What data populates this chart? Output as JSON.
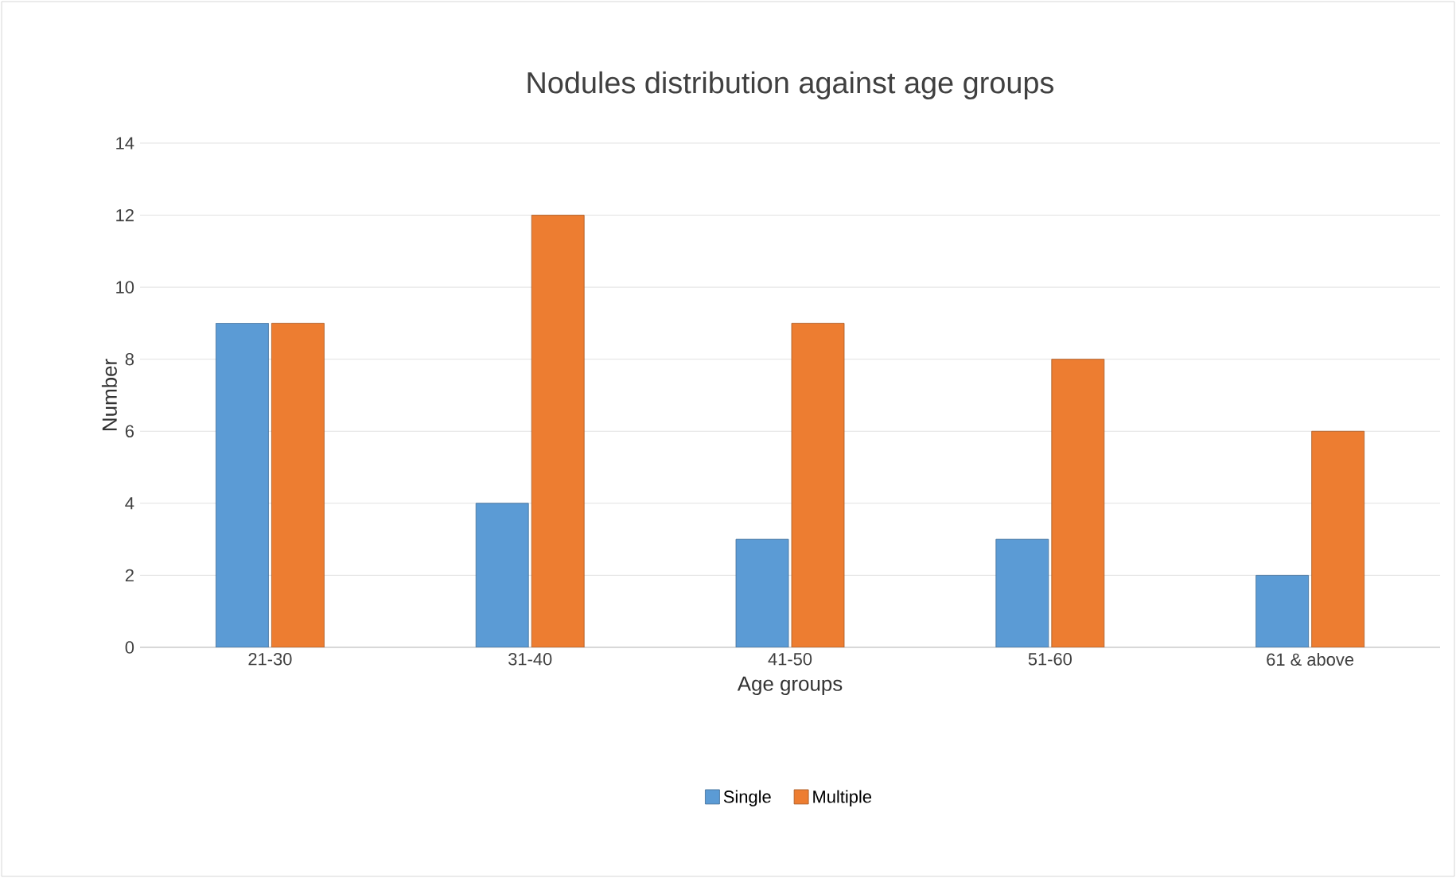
{
  "chart_data": {
    "type": "bar",
    "title": "Nodules distribution against age groups",
    "xlabel": "Age groups",
    "ylabel": "Number",
    "categories": [
      "21-30",
      "31-40",
      "41-50",
      "51-60",
      "61 & above"
    ],
    "series": [
      {
        "name": "Single",
        "color": "#5b9bd5",
        "values": [
          9,
          4,
          3,
          3,
          2
        ]
      },
      {
        "name": "Multiple",
        "color": "#ed7d31",
        "values": [
          9,
          12,
          9,
          8,
          6
        ]
      }
    ],
    "ylim": [
      0,
      14
    ],
    "yticks": [
      0,
      2,
      4,
      6,
      8,
      10,
      12,
      14
    ],
    "grid": "y",
    "legend": "bottom"
  }
}
